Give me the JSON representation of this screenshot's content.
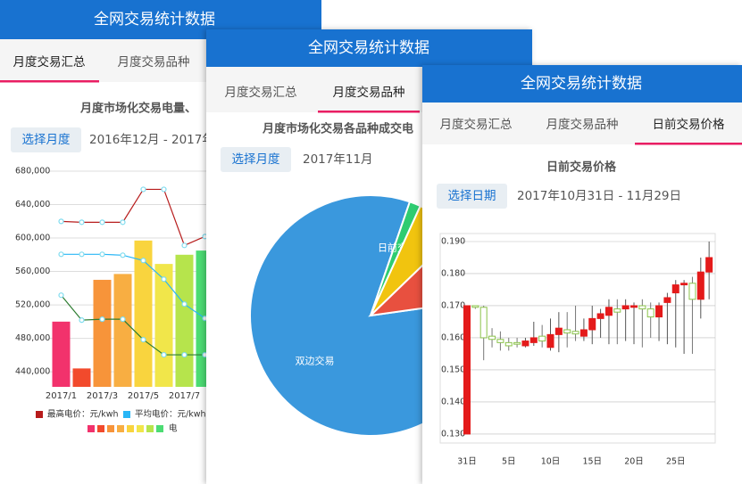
{
  "screens": [
    {
      "header": "全网交易统计数据",
      "tabs": [
        "月度交易汇总",
        "月度交易品种"
      ],
      "active_tab": 0,
      "button": "选择月度",
      "range": "2016年12月 - 2017年"
    },
    {
      "header": "全网交易统计数据",
      "tabs": [
        "月度交易汇总",
        "月度交易品种"
      ],
      "active_tab": 1,
      "button": "选择月度",
      "range": "2017年11月"
    },
    {
      "header": "全网交易统计数据",
      "tabs": [
        "月度交易汇总",
        "月度交易品种",
        "日前交易价格"
      ],
      "active_tab": 2,
      "button": "选择日期",
      "range": "2017年10月31日 - 11月29日"
    }
  ],
  "chart_data": [
    {
      "type": "bar",
      "title": "月度市场化交易电量、",
      "categories": [
        "2017/1",
        null,
        "2017/3",
        null,
        "2017/5",
        null,
        "2017/7",
        null
      ],
      "series": [
        {
          "name": "电",
          "colors": [
            "#f2326c",
            "#f24a2c",
            "#f7943a",
            "#f8ae42",
            "#f9d43e",
            "#f1e64a",
            "#b6e44c",
            "#4cdc73"
          ],
          "values": [
            500000,
            444000,
            550000,
            557000,
            597000,
            569000,
            580000,
            585000
          ]
        },
        {
          "name": "最高电价：元/kwh",
          "color": "#b71c1c",
          "axis": "y2",
          "values": [
            0.386,
            0.385,
            0.385,
            0.385,
            0.422,
            0.422,
            0.359,
            0.369
          ]
        },
        {
          "name": "平均电价：元/kwh",
          "color": "#29b6f6",
          "axis": "y2",
          "values": [
            0.349,
            0.349,
            0.349,
            0.348,
            0.342,
            0.321,
            0.293,
            0.277
          ]
        },
        {
          "color": "#2e7d32",
          "axis": "y2",
          "values": [
            0.303,
            0.275,
            0.276,
            0.276,
            0.253,
            0.236,
            0.236,
            0.236
          ]
        }
      ],
      "ylim": [
        422000,
        688000
      ],
      "yticks": [
        {
          "value": 440000,
          "label": "440,000"
        },
        {
          "value": 480000,
          "label": "480,000"
        },
        {
          "value": 520000,
          "label": "520,000"
        },
        {
          "value": 560000,
          "label": "560,000"
        },
        {
          "value": 600000,
          "label": "600,000"
        },
        {
          "value": 640000,
          "label": "640,000"
        },
        {
          "value": 680000,
          "label": "680,000"
        }
      ],
      "y2lim": [
        0.2,
        0.45
      ],
      "grid": true
    },
    {
      "type": "pie",
      "title": "月度市场化交易各品种成交电",
      "categories": [
        "双边交易",
        "日前交易",
        null,
        null
      ],
      "values": [
        82.5,
        1.5,
        6,
        10
      ],
      "colors": [
        "#3a98dd",
        "#2ecc71",
        "#f1c40f",
        "#e8503f"
      ]
    },
    {
      "type": "candlestick",
      "title": "日前交易价格",
      "categories": [
        "31日",
        null,
        null,
        null,
        null,
        "5日",
        null,
        null,
        null,
        null,
        "10日",
        null,
        null,
        null,
        null,
        "15日",
        null,
        null,
        null,
        null,
        "20日",
        null,
        null,
        null,
        null,
        "25日",
        null,
        null,
        null,
        null
      ],
      "open": [
        0.13,
        0.17,
        0.1695,
        0.1605,
        0.1595,
        0.1585,
        0.1585,
        0.1575,
        0.1585,
        0.1605,
        0.157,
        0.161,
        0.1625,
        0.162,
        0.1605,
        0.1625,
        0.166,
        0.167,
        0.169,
        0.169,
        0.1695,
        0.17,
        0.169,
        0.1665,
        0.171,
        0.174,
        0.1765,
        0.177,
        0.172,
        0.1805
      ],
      "close": [
        0.17,
        0.1695,
        0.16,
        0.1595,
        0.1585,
        0.1575,
        0.158,
        0.159,
        0.16,
        0.159,
        0.161,
        0.163,
        0.1615,
        0.1612,
        0.1625,
        0.166,
        0.1675,
        0.1695,
        0.168,
        0.17,
        0.17,
        0.169,
        0.1665,
        0.17,
        0.1725,
        0.1765,
        0.177,
        0.172,
        0.1805,
        0.185
      ],
      "high": [
        0.17,
        0.17,
        0.17,
        0.163,
        0.162,
        0.16,
        0.16,
        0.16,
        0.165,
        0.164,
        0.166,
        0.168,
        0.168,
        0.17,
        0.166,
        0.17,
        0.169,
        0.172,
        0.172,
        0.172,
        0.171,
        0.172,
        0.171,
        0.171,
        0.174,
        0.178,
        0.178,
        0.179,
        0.185,
        0.19
      ],
      "low": [
        0.13,
        0.169,
        0.153,
        0.157,
        0.156,
        0.156,
        0.157,
        0.157,
        0.1575,
        0.157,
        0.156,
        0.1555,
        0.157,
        0.159,
        0.159,
        0.158,
        0.16,
        0.158,
        0.158,
        0.159,
        0.158,
        0.157,
        0.16,
        0.159,
        0.158,
        0.157,
        0.155,
        0.155,
        0.166,
        0.172
      ],
      "up_color": "#e41a1a",
      "down_color": "#8bc34a",
      "ylim": [
        0.1272,
        0.1925
      ],
      "yticks": [
        {
          "value": 0.13,
          "label": "0.130"
        },
        {
          "value": 0.14,
          "label": "0.140"
        },
        {
          "value": 0.15,
          "label": "0.150"
        },
        {
          "value": 0.16,
          "label": "0.160"
        },
        {
          "value": 0.17,
          "label": "0.170"
        },
        {
          "value": 0.18,
          "label": "0.180"
        },
        {
          "value": 0.19,
          "label": "0.190"
        }
      ],
      "grid": true
    }
  ]
}
